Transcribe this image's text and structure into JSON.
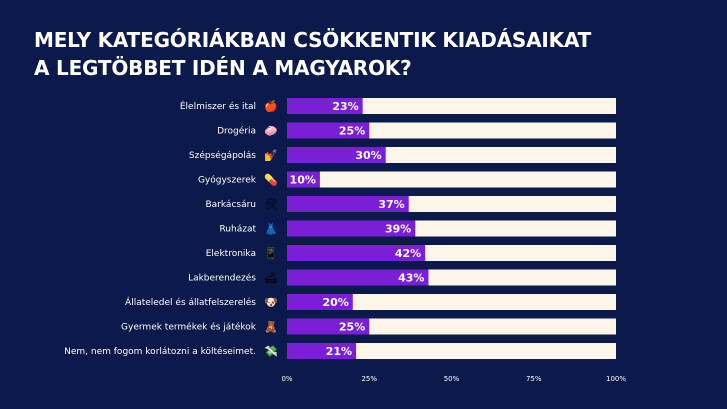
{
  "title_lines": [
    "MELY KATEGÓRIÁKBAN CSÖKKENTIK KIADÁSAIKAT",
    "A LEGTÖBBET IDÉN A MAGYAROK?"
  ],
  "colors": {
    "background": "#0b1a4a",
    "bar_fill": "#7a1fd6",
    "bar_track": "#fcf6ea",
    "text": "#ffffff"
  },
  "chart_data": {
    "type": "bar",
    "orientation": "horizontal",
    "title": "MELY KATEGÓRIÁKBAN CSÖKKENTIK KIADÁSAIKAT A LEGTÖBBET IDÉN A MAGYAROK?",
    "categories": [
      "Élelmiszer és ital",
      "Drogéria",
      "Szépségápolás",
      "Gyógyszerek",
      "Barkácsáru",
      "Ruházat",
      "Elektronika",
      "Lakberendezés",
      "Állateledel és állatfelszerelés",
      "Gyermek termékek és játékok",
      "Nem, nem fogom korlátozni a költéseimet."
    ],
    "icons": [
      "apple-icon",
      "soap-icon",
      "nail-polish-icon",
      "pill-icon",
      "tools-icon",
      "dress-icon",
      "mobile-phone-icon",
      "couch-icon",
      "dog-icon",
      "teddy-bear-icon",
      "money-icon"
    ],
    "values": [
      23,
      25,
      30,
      10,
      37,
      39,
      42,
      43,
      20,
      25,
      21
    ],
    "value_labels": [
      "23%",
      "25%",
      "30%",
      "10%",
      "37%",
      "39%",
      "42%",
      "43%",
      "20%",
      "25%",
      "21%"
    ],
    "xlim": [
      0,
      100
    ],
    "x_ticks": [
      0,
      25,
      50,
      75,
      100
    ],
    "x_tick_labels": [
      "0%",
      "25%",
      "50%",
      "75%",
      "100%"
    ],
    "grid": false,
    "xlabel": "",
    "ylabel": ""
  }
}
